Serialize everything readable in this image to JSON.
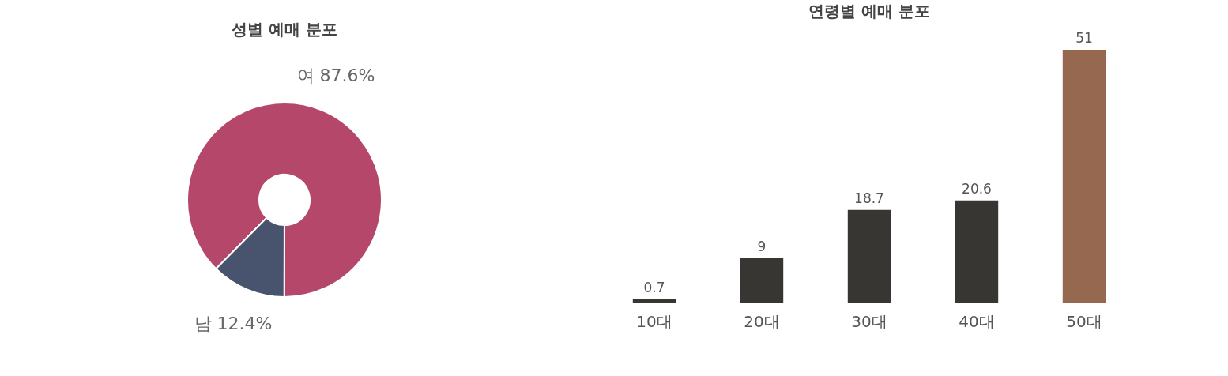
{
  "chart_data": [
    {
      "type": "donut",
      "title": "성별 예매 분포",
      "categories": [
        "여",
        "남"
      ],
      "values": [
        87.6,
        12.4
      ],
      "colors": [
        "#b5476a",
        "#48546d"
      ],
      "value_labels": [
        "87.6%",
        "12.4%"
      ]
    },
    {
      "type": "bar",
      "title": "연령별 예매 분포",
      "categories": [
        "10대",
        "20대",
        "30대",
        "40대",
        "50대"
      ],
      "values": [
        0.7,
        9,
        18.7,
        20.6,
        51
      ],
      "colors": [
        "#383633",
        "#383633",
        "#383633",
        "#383633",
        "#96684f"
      ],
      "data_labels": true
    }
  ]
}
